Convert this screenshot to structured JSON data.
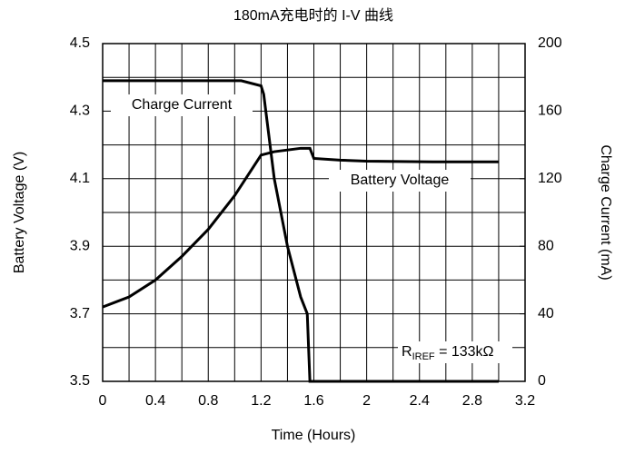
{
  "chart_data": {
    "type": "line",
    "title": "180mA充电时的 I-V 曲线",
    "x_label": "Time (Hours)",
    "y_label": "Battery Voltage (V)",
    "y2_label": "Charge Current (mA)",
    "xlim": [
      0,
      3.2
    ],
    "xticks": [
      0,
      0.4,
      0.8,
      1.2,
      1.6,
      2,
      2.4,
      2.8,
      3.2
    ],
    "x_minor_ticks": [
      0.2,
      0.6,
      1.0,
      1.4,
      1.8,
      2.2,
      2.6,
      3.0
    ],
    "ylim": [
      3.5,
      4.5
    ],
    "yticks": [
      3.5,
      3.7,
      3.9,
      4.1,
      4.3,
      4.5
    ],
    "y_minor_ticks": [
      3.6,
      3.8,
      4.0,
      4.2,
      4.4
    ],
    "y2lim": [
      0,
      200
    ],
    "y2ticks": [
      0,
      40,
      80,
      120,
      160,
      200
    ],
    "grid": true,
    "series": [
      {
        "name": "Battery Voltage",
        "color": "#000000",
        "axis": "y",
        "x": [
          0,
          0.2,
          0.4,
          0.6,
          0.8,
          1.0,
          1.2,
          1.3,
          1.5,
          1.57,
          1.6,
          1.8,
          2.0,
          2.5,
          3.0
        ],
        "values": [
          3.72,
          3.75,
          3.8,
          3.87,
          3.95,
          4.05,
          4.17,
          4.18,
          4.19,
          4.19,
          4.16,
          4.155,
          4.152,
          4.15,
          4.15
        ]
      },
      {
        "name": "Charge Current",
        "color": "#000000",
        "axis": "y2",
        "x": [
          0,
          1.05,
          1.2,
          1.22,
          1.3,
          1.4,
          1.5,
          1.55,
          1.57,
          3.0
        ],
        "values": [
          178,
          178,
          175,
          170,
          120,
          80,
          50,
          40,
          0,
          0
        ]
      }
    ],
    "annotation": {
      "text": "R",
      "subscript": "IREF",
      "suffix": " = 133kΩ"
    }
  }
}
